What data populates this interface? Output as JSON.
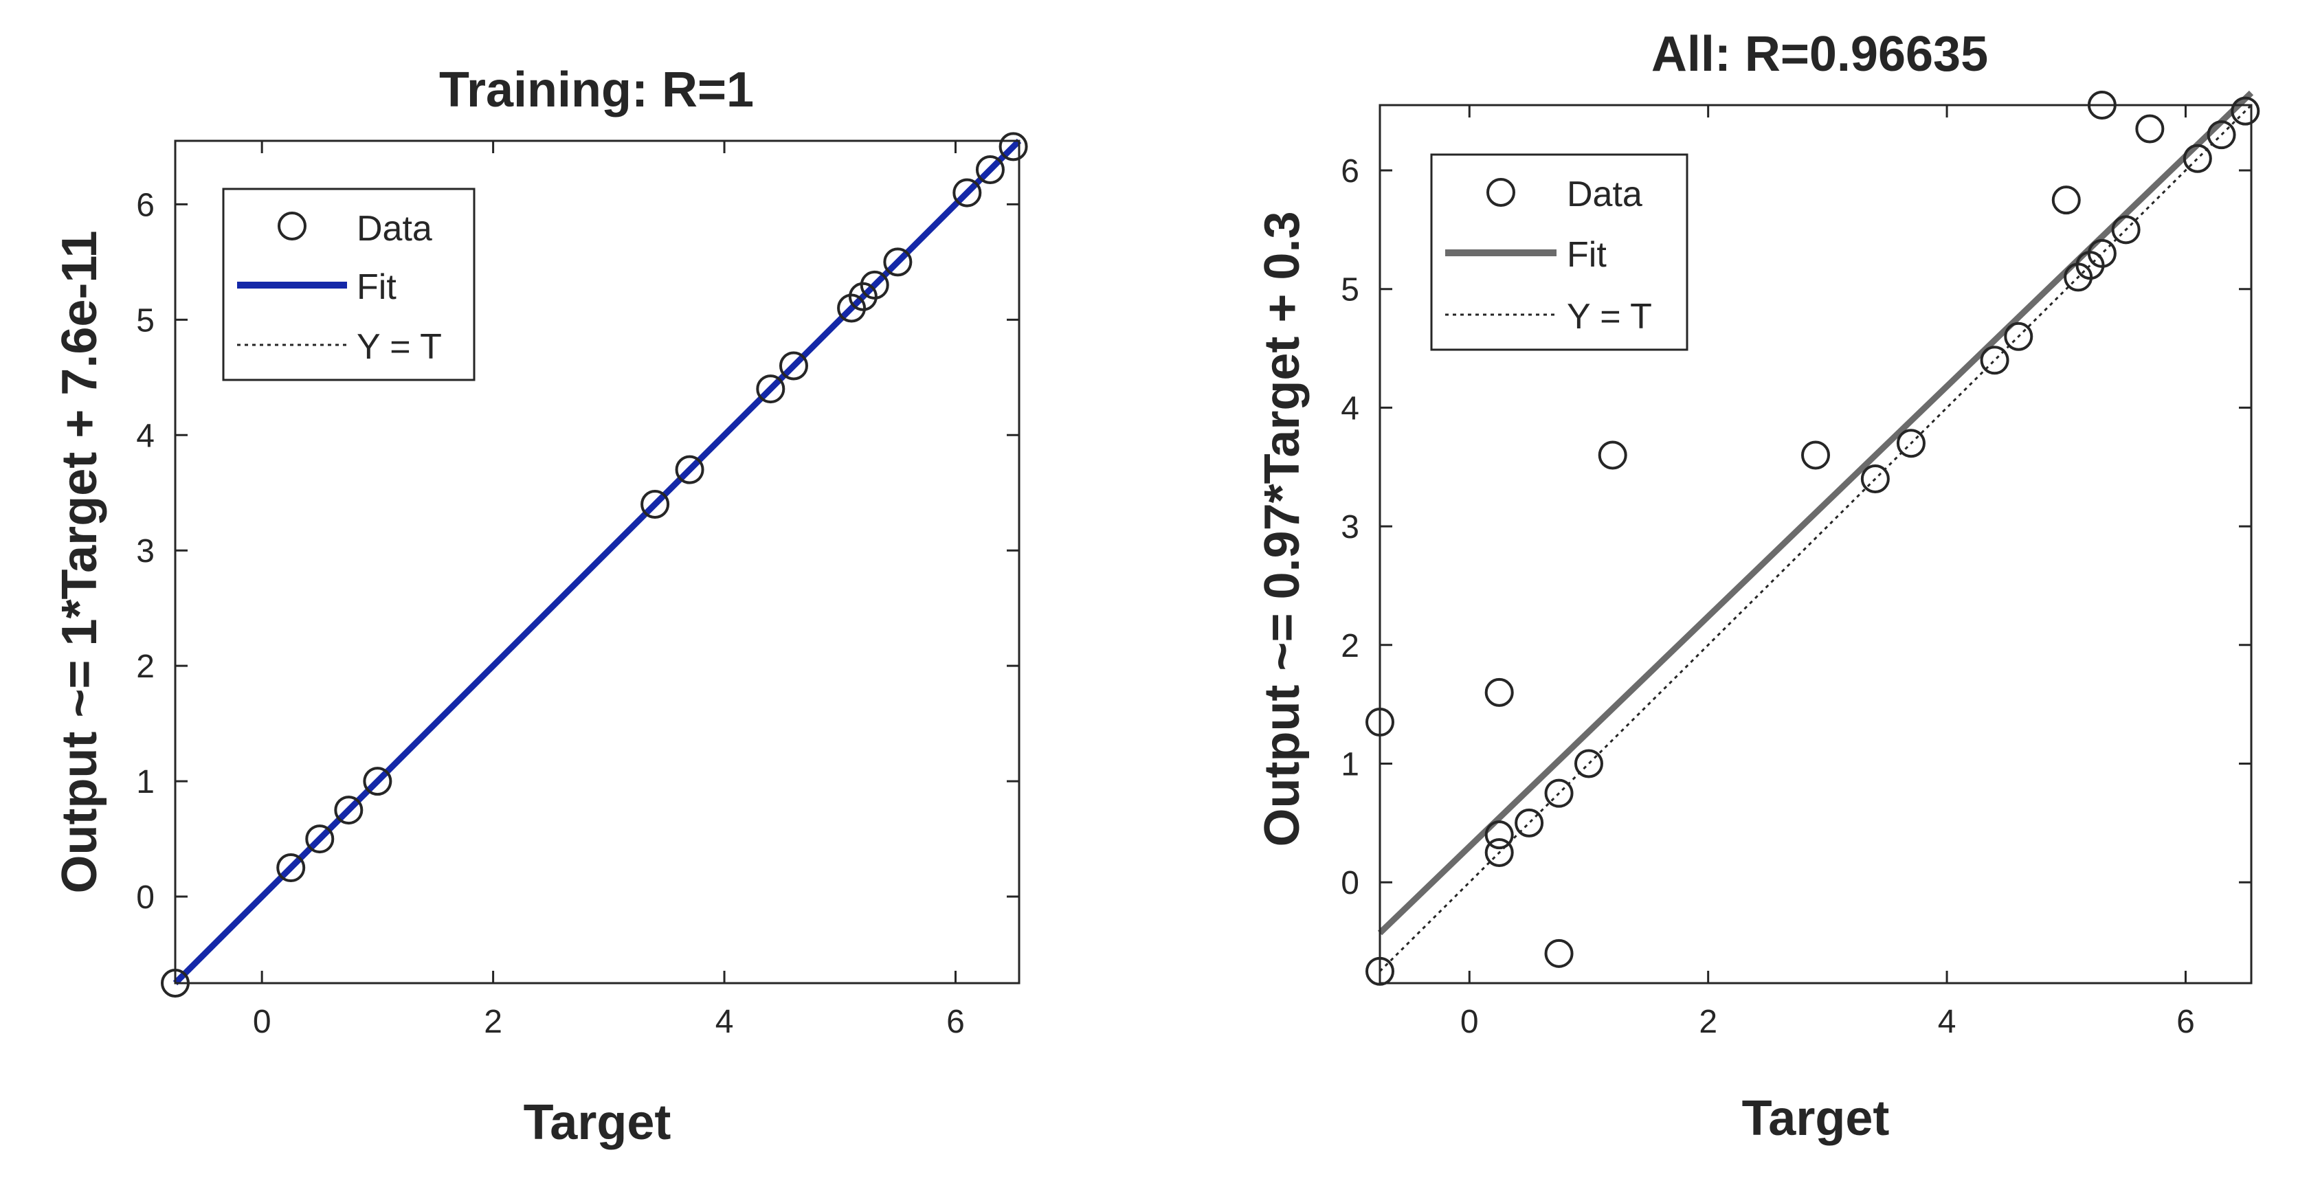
{
  "figure": {
    "panels": [
      "training",
      "all"
    ]
  },
  "chart_data": [
    {
      "id": "training",
      "type": "scatter",
      "title": "Training: R=1",
      "xlabel": "Target",
      "ylabel": "Output ~= 1*Target + 7.6e-11",
      "xlim": [
        -0.75,
        6.55
      ],
      "ylim": [
        -0.75,
        6.55
      ],
      "xticks": [
        0,
        2,
        4,
        6
      ],
      "yticks": [
        0,
        1,
        2,
        3,
        4,
        5,
        6
      ],
      "grid": false,
      "legend": {
        "placement": "top-left",
        "entries": [
          "Data",
          "Fit",
          "Y = T"
        ]
      },
      "fit_color": "#1428a8",
      "fit": {
        "slope": 1.0,
        "intercept": 7.6e-11
      },
      "series": [
        {
          "name": "Data",
          "x": [
            -0.75,
            0.25,
            0.5,
            0.75,
            1.0,
            3.4,
            3.7,
            4.4,
            4.6,
            5.1,
            5.2,
            5.3,
            5.5,
            6.1,
            6.3,
            6.5
          ],
          "y": [
            -0.75,
            0.25,
            0.5,
            0.75,
            1.0,
            3.4,
            3.7,
            4.4,
            4.6,
            5.1,
            5.2,
            5.3,
            5.5,
            6.1,
            6.3,
            6.5
          ]
        },
        {
          "name": "Fit"
        },
        {
          "name": "Y = T"
        }
      ]
    },
    {
      "id": "all",
      "type": "scatter",
      "title": "All: R=0.96635",
      "xlabel": "Target",
      "ylabel": "Output ~= 0.97*Target + 0.3",
      "xlim": [
        -0.75,
        6.55
      ],
      "ylim": [
        -0.85,
        6.55
      ],
      "xticks": [
        0,
        2,
        4,
        6
      ],
      "yticks": [
        0,
        1,
        2,
        3,
        4,
        5,
        6
      ],
      "grid": false,
      "legend": {
        "placement": "top-left",
        "entries": [
          "Data",
          "Fit",
          "Y = T"
        ]
      },
      "fit_color": "#6b6b6b",
      "fit": {
        "slope": 0.97,
        "intercept": 0.3
      },
      "series": [
        {
          "name": "Data",
          "x": [
            -0.75,
            -0.75,
            0.25,
            0.25,
            0.25,
            0.5,
            0.75,
            0.75,
            1.0,
            1.2,
            2.9,
            3.4,
            3.7,
            4.4,
            4.6,
            5.0,
            5.1,
            5.2,
            5.3,
            5.3,
            5.5,
            5.7,
            6.1,
            6.3,
            6.5
          ],
          "y": [
            1.35,
            -0.75,
            1.6,
            0.4,
            0.25,
            0.5,
            0.75,
            -0.6,
            1.0,
            3.6,
            3.6,
            3.4,
            3.7,
            4.4,
            4.6,
            5.75,
            5.1,
            5.2,
            5.3,
            6.55,
            5.5,
            6.35,
            6.1,
            6.3,
            6.5
          ]
        },
        {
          "name": "Fit"
        },
        {
          "name": "Y = T"
        }
      ]
    }
  ]
}
